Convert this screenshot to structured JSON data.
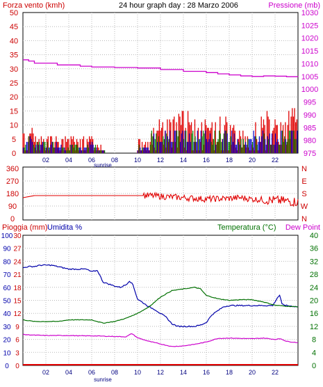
{
  "header": {
    "left_label": "Forza vento (kmh)",
    "title": "24 hour graph day : 28 Marzo 2006",
    "right_label": "Pressione (mb)"
  },
  "sunrise_label": "sunrise",
  "x_ticks": [
    "02",
    "04",
    "06",
    "08",
    "10",
    "12",
    "14",
    "16",
    "18",
    "20",
    "22"
  ],
  "panel1": {
    "left_ticks": [
      0,
      5,
      10,
      15,
      20,
      25,
      30,
      35,
      40,
      45,
      50
    ],
    "right_ticks": [
      975,
      980,
      985,
      990,
      995,
      1000,
      1005,
      1010,
      1015,
      1020,
      1025,
      1030
    ]
  },
  "panel2": {
    "left_ticks": [
      0,
      90,
      180,
      270,
      360
    ],
    "right_letters": [
      "N",
      "E",
      "S",
      "W",
      "N"
    ]
  },
  "panel3": {
    "label_rain": "Pioggia (mm)",
    "label_hum": "Umidita %",
    "label_temp": "Temperatura (°C)",
    "label_dew": "Dew Point",
    "rain_ticks": [
      0,
      3,
      6,
      9,
      12,
      15,
      18,
      21,
      24,
      27,
      30
    ],
    "hum_ticks": [
      0,
      10,
      20,
      30,
      40,
      50,
      60,
      70,
      80,
      90,
      100
    ],
    "temp_ticks": [
      0,
      4,
      8,
      12,
      16,
      20,
      24,
      28,
      32,
      36,
      40
    ]
  },
  "colors": {
    "wind": "#e00000",
    "gust_blue": "#0000cc",
    "gust_green": "#008000",
    "pressure": "#cc00cc",
    "direction": "#e00000",
    "humidity": "#0000aa",
    "temperature": "#007000",
    "dewpoint": "#cc00cc",
    "rain": "#e00000",
    "label_red": "#cc0000",
    "label_blue": "#0000aa",
    "label_green": "#007000",
    "label_magenta": "#cc00cc"
  },
  "chart_data": [
    {
      "type": "bar",
      "title": "24 hour graph day : 28 Marzo 2006",
      "ylabel": "Forza vento (kmh)",
      "y2label": "Pressione (mb)",
      "xlim": [
        0,
        24
      ],
      "ylim": [
        0,
        50
      ],
      "y2lim": [
        975,
        1030
      ],
      "pressure_series": {
        "x": [
          0,
          0.5,
          1,
          3,
          5,
          6,
          8,
          10,
          12,
          14,
          16,
          17,
          18,
          19,
          20,
          21,
          22,
          23,
          24
        ],
        "values": [
          1011.5,
          1011,
          1010.2,
          1009.5,
          1009,
          1008.7,
          1008.5,
          1008.3,
          1007.7,
          1007,
          1006.5,
          1006,
          1005.6,
          1005.2,
          1005,
          1005.2,
          1005.1,
          1004.9,
          1004.8
        ]
      },
      "wind_segments": [
        {
          "x0": 0.0,
          "x1": 1.0,
          "max": 9,
          "avg": 4
        },
        {
          "x0": 1.0,
          "x1": 2.0,
          "max": 6,
          "avg": 3
        },
        {
          "x0": 2.0,
          "x1": 3.5,
          "max": 6,
          "avg": 3
        },
        {
          "x0": 3.5,
          "x1": 5.5,
          "max": 6,
          "avg": 2
        },
        {
          "x0": 5.5,
          "x1": 6.5,
          "max": 7,
          "avg": 3
        },
        {
          "x0": 6.5,
          "x1": 7.2,
          "max": 3,
          "avg": 1
        },
        {
          "x0": 7.2,
          "x1": 10.0,
          "max": 0,
          "avg": 0
        },
        {
          "x0": 10.0,
          "x1": 11.2,
          "max": 5,
          "avg": 2
        },
        {
          "x0": 11.2,
          "x1": 12.5,
          "max": 12,
          "avg": 6
        },
        {
          "x0": 12.5,
          "x1": 14.5,
          "max": 15,
          "avg": 7
        },
        {
          "x0": 14.5,
          "x1": 16.5,
          "max": 13,
          "avg": 6
        },
        {
          "x0": 16.5,
          "x1": 18.5,
          "max": 14,
          "avg": 6
        },
        {
          "x0": 18.5,
          "x1": 20.0,
          "max": 8,
          "avg": 4
        },
        {
          "x0": 20.0,
          "x1": 21.5,
          "max": 15,
          "avg": 6
        },
        {
          "x0": 21.5,
          "x1": 22.5,
          "max": 12,
          "avg": 5
        },
        {
          "x0": 22.5,
          "x1": 24.0,
          "max": 16,
          "avg": 7
        }
      ]
    },
    {
      "type": "line",
      "title": "",
      "ylabel": "",
      "xlim": [
        0,
        24
      ],
      "ylim": [
        0,
        360
      ],
      "direction_series": {
        "x": [
          0,
          1,
          5,
          10,
          11,
          12,
          14,
          16,
          18,
          19,
          20,
          21,
          22,
          23,
          24
        ],
        "values": [
          150,
          165,
          165,
          165,
          165,
          160,
          150,
          140,
          145,
          150,
          140,
          135,
          130,
          125,
          120
        ]
      }
    },
    {
      "type": "line",
      "title": "",
      "ylabel": "Pioggia (mm) / Umidita %",
      "y2label": "Temperatura (°C) / Dew Point",
      "xlim": [
        0,
        24
      ],
      "humidity_ylim": [
        0,
        100
      ],
      "temp_ylim": [
        0,
        40
      ],
      "series": [
        {
          "name": "Umidita %",
          "x": [
            0,
            0.5,
            1.0,
            1.5,
            2.0,
            2.5,
            3.0,
            4.0,
            5.0,
            5.5,
            6.0,
            6.5,
            7.0,
            8.0,
            8.5,
            9.0,
            9.3,
            9.6,
            10.0,
            10.5,
            11.0,
            11.5,
            12.0,
            12.5,
            13.0,
            13.5,
            14.0,
            14.5,
            15.0,
            15.5,
            16.0,
            16.5,
            17.0,
            17.5,
            18.0,
            19.0,
            20.0,
            21.0,
            21.8,
            22.2,
            22.4,
            22.6,
            23.0,
            24.0
          ],
          "values": [
            75,
            76,
            76,
            77,
            77,
            77,
            76,
            74,
            74,
            74,
            72,
            73,
            64,
            61,
            60,
            62,
            65,
            62,
            51,
            48,
            45,
            43,
            40,
            37,
            32,
            30,
            30,
            30,
            30,
            31,
            33,
            39,
            42,
            45,
            46,
            46,
            46,
            46,
            46,
            52,
            54,
            47,
            46,
            45
          ]
        },
        {
          "name": "Temperatura (°C)",
          "x": [
            0,
            1,
            2,
            3,
            4,
            5,
            6,
            7,
            8,
            9,
            10,
            11,
            12,
            13,
            14,
            15,
            15.5,
            16,
            17,
            18,
            19,
            20,
            21,
            22,
            23,
            24
          ],
          "values": [
            14,
            13.5,
            13.5,
            13.5,
            14,
            14,
            14,
            13,
            13.5,
            14.5,
            16,
            18,
            21,
            23,
            23.5,
            24,
            23.5,
            21.5,
            20.5,
            20,
            20.2,
            20.2,
            19.5,
            18.5,
            18.2,
            18
          ]
        },
        {
          "name": "Dew Point",
          "x": [
            0,
            1,
            2,
            3,
            4,
            5,
            6,
            7,
            8,
            9,
            9.5,
            10,
            11,
            12,
            13,
            14,
            15,
            16,
            17,
            18,
            19,
            20,
            21,
            22,
            22.5,
            23,
            24
          ],
          "values": [
            9.5,
            9.3,
            9.2,
            9.2,
            9.2,
            9.1,
            9.1,
            9.0,
            8.9,
            8.8,
            9.8,
            8.5,
            7.4,
            6.6,
            5.8,
            6.0,
            6.5,
            7.2,
            8.3,
            8.4,
            8.3,
            8.2,
            8.4,
            8.0,
            8.2,
            7.4,
            7.0
          ]
        },
        {
          "name": "Pioggia (mm)",
          "x": [
            0,
            24
          ],
          "values": [
            0,
            0
          ]
        }
      ]
    }
  ]
}
